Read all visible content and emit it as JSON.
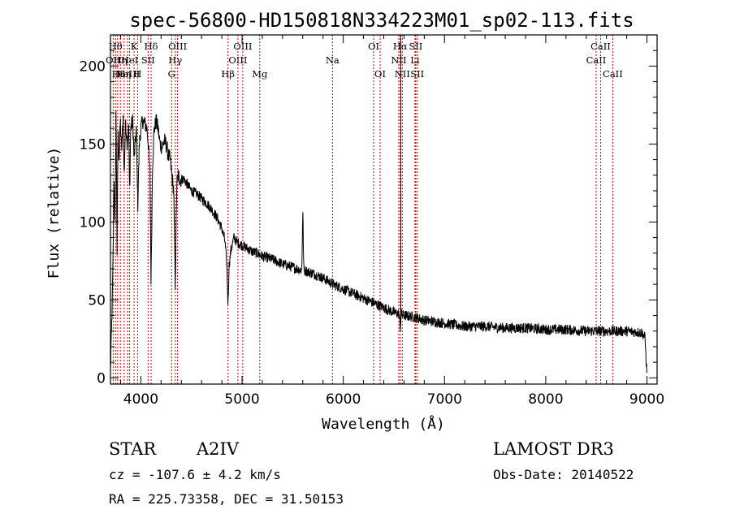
{
  "chart_data": {
    "type": "line",
    "title": "spec-56800-HD150818N334223M01_sp02-113.fits",
    "xlabel": "Wavelength (Å)",
    "ylabel": "Flux (relative)",
    "xlim": [
      3700,
      9100
    ],
    "ylim": [
      -4,
      220
    ],
    "x_ticks": [
      4000,
      5000,
      6000,
      7000,
      8000,
      9000
    ],
    "y_ticks": [
      0,
      50,
      100,
      150,
      200
    ],
    "series": [
      {
        "name": "spectrum",
        "anchors": [
          [
            3700,
            5
          ],
          [
            3715,
            40
          ],
          [
            3725,
            72
          ],
          [
            3735,
            130
          ],
          [
            3745,
            95
          ],
          [
            3755,
            175
          ],
          [
            3765,
            80
          ],
          [
            3775,
            160
          ],
          [
            3785,
            140
          ],
          [
            3798,
            165
          ],
          [
            3810,
            145
          ],
          [
            3825,
            168
          ],
          [
            3835,
            130
          ],
          [
            3850,
            165
          ],
          [
            3865,
            150
          ],
          [
            3880,
            162
          ],
          [
            3889,
            118
          ],
          [
            3900,
            160
          ],
          [
            3920,
            165
          ],
          [
            3933,
            140
          ],
          [
            3945,
            150
          ],
          [
            3955,
            160
          ],
          [
            3970,
            110
          ],
          [
            3985,
            150
          ],
          [
            4000,
            160
          ],
          [
            4020,
            165
          ],
          [
            4040,
            163
          ],
          [
            4060,
            160
          ],
          [
            4075,
            150
          ],
          [
            4090,
            130
          ],
          [
            4101,
            60
          ],
          [
            4115,
            135
          ],
          [
            4130,
            158
          ],
          [
            4150,
            165
          ],
          [
            4170,
            160
          ],
          [
            4190,
            150
          ],
          [
            4210,
            148
          ],
          [
            4230,
            152
          ],
          [
            4250,
            150
          ],
          [
            4270,
            143
          ],
          [
            4290,
            140
          ],
          [
            4310,
            128
          ],
          [
            4325,
            120
          ],
          [
            4340,
            58
          ],
          [
            4355,
            125
          ],
          [
            4370,
            130
          ],
          [
            4390,
            127
          ],
          [
            4420,
            128
          ],
          [
            4450,
            125
          ],
          [
            4480,
            122
          ],
          [
            4500,
            120
          ],
          [
            4550,
            118
          ],
          [
            4600,
            115
          ],
          [
            4650,
            112
          ],
          [
            4700,
            108
          ],
          [
            4750,
            103
          ],
          [
            4800,
            96
          ],
          [
            4830,
            88
          ],
          [
            4850,
            72
          ],
          [
            4861,
            46
          ],
          [
            4872,
            72
          ],
          [
            4890,
            82
          ],
          [
            4920,
            90
          ],
          [
            4950,
            87
          ],
          [
            5000,
            85
          ],
          [
            5050,
            83
          ],
          [
            5100,
            81
          ],
          [
            5150,
            80
          ],
          [
            5200,
            78
          ],
          [
            5300,
            76
          ],
          [
            5400,
            73
          ],
          [
            5500,
            71
          ],
          [
            5590,
            69
          ],
          [
            5600,
            108
          ],
          [
            5610,
            69
          ],
          [
            5700,
            67
          ],
          [
            5800,
            64
          ],
          [
            5900,
            60
          ],
          [
            6000,
            57
          ],
          [
            6100,
            54
          ],
          [
            6200,
            51
          ],
          [
            6300,
            48
          ],
          [
            6400,
            45
          ],
          [
            6500,
            42
          ],
          [
            6550,
            41
          ],
          [
            6563,
            32
          ],
          [
            6573,
            41
          ],
          [
            6600,
            40
          ],
          [
            6700,
            39
          ],
          [
            6800,
            37
          ],
          [
            6900,
            36
          ],
          [
            7000,
            35
          ],
          [
            7200,
            33
          ],
          [
            7400,
            33
          ],
          [
            7600,
            32
          ],
          [
            7800,
            32
          ],
          [
            8000,
            31
          ],
          [
            8200,
            31
          ],
          [
            8400,
            30
          ],
          [
            8600,
            30
          ],
          [
            8800,
            30
          ],
          [
            8950,
            29
          ],
          [
            8980,
            26
          ],
          [
            9000,
            2
          ]
        ],
        "noise": 3.4,
        "spikes": [
          [
            6567,
            220
          ]
        ]
      }
    ],
    "line_markers": [
      {
        "wavelength": 3727,
        "label": "OII",
        "row": 1
      },
      {
        "wavelength": 3750,
        "label": "Hθ",
        "row": 0
      },
      {
        "wavelength": 3771,
        "label": "Hι",
        "row": 2
      },
      {
        "wavelength": 3798,
        "label": "Hη",
        "row": 1
      },
      {
        "wavelength": 3835,
        "label": "Hη",
        "row": 2
      },
      {
        "wavelength": 3869,
        "label": "NeIII",
        "row": 2
      },
      {
        "wavelength": 3889,
        "label": "HeI",
        "row": 1
      },
      {
        "wavelength": 3933,
        "label": "K",
        "row": 0
      },
      {
        "wavelength": 3968,
        "label": "H",
        "row": 2
      },
      {
        "wavelength": 4072,
        "label": "SII",
        "row": 1
      },
      {
        "wavelength": 4101,
        "label": "Hδ",
        "row": 0
      },
      {
        "wavelength": 4304,
        "label": "G",
        "row": 2
      },
      {
        "wavelength": 4340,
        "label": "Hγ",
        "row": 1
      },
      {
        "wavelength": 4363,
        "label": "OIII",
        "row": 0
      },
      {
        "wavelength": 4861,
        "label": "Hβ",
        "row": 2
      },
      {
        "wavelength": 4959,
        "label": "OIII",
        "row": 1
      },
      {
        "wavelength": 5007,
        "label": "OIII",
        "row": 0
      },
      {
        "wavelength": 5175,
        "label": "Mg",
        "row": 2
      },
      {
        "wavelength": 5893,
        "label": "Na",
        "row": 1
      },
      {
        "wavelength": 6300,
        "label": "OI",
        "row": 0
      },
      {
        "wavelength": 6364,
        "label": "OI",
        "row": 2
      },
      {
        "wavelength": 6548,
        "label": "NII",
        "row": 1
      },
      {
        "wavelength": 6563,
        "label": "Hα",
        "row": 0
      },
      {
        "wavelength": 6583,
        "label": "NII",
        "row": 2
      },
      {
        "wavelength": 6708,
        "label": "Li",
        "row": 1
      },
      {
        "wavelength": 6716,
        "label": "SII",
        "row": 0
      },
      {
        "wavelength": 6731,
        "label": "SII",
        "row": 2
      },
      {
        "wavelength": 8498,
        "label": "CaII",
        "row": 1
      },
      {
        "wavelength": 8542,
        "label": "CaII",
        "row": 0
      },
      {
        "wavelength": 8662,
        "label": "CaII",
        "row": 2
      }
    ],
    "line_color": "#000000",
    "marker_color": "#cc0000"
  },
  "info": {
    "object_class": "STAR",
    "subclass": "A2IV",
    "survey": "LAMOST DR3",
    "redshift": "cz = -107.6 ± 4.2 km/s",
    "obs_date": "Obs-Date: 20140522",
    "coords": "RA = 225.73358, DEC =  31.50153"
  }
}
